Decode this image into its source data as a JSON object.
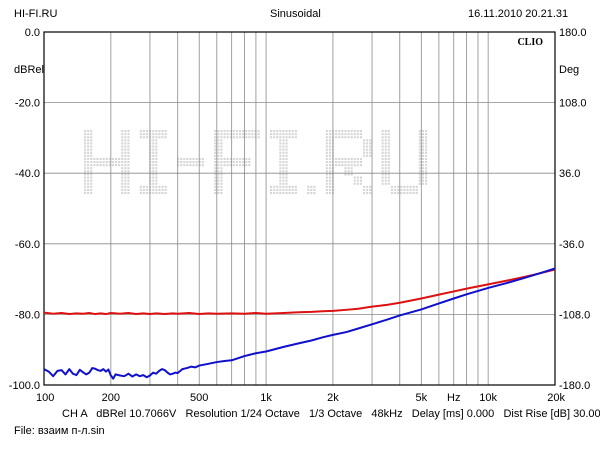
{
  "header": {
    "left": "HI-FI.RU",
    "center": "Sinusoidal",
    "right": "16.11.2010 20.21.31"
  },
  "footer": {
    "line1": "CH A   dBRel 10.7066V   Resolution 1/24 Octave   1/3 Octave   48kHz   Delay [ms] 0.000   Dist Rise [dB] 30.00",
    "line2": "File: взаим п-л.sin"
  },
  "chart_data": {
    "type": "line",
    "brand": "CLIO",
    "watermark": "HI-FI.RU",
    "xscale": "log",
    "xlim": [
      100,
      20000
    ],
    "xticks": [
      {
        "value": 100,
        "label": "100"
      },
      {
        "value": 200,
        "label": "200"
      },
      {
        "value": 500,
        "label": "500"
      },
      {
        "value": 1000,
        "label": "1k"
      },
      {
        "value": 2000,
        "label": "2k"
      },
      {
        "value": 5000,
        "label": "5k"
      },
      {
        "value": 7000,
        "label": "Hz"
      },
      {
        "value": 10000,
        "label": "10k"
      },
      {
        "value": 20000,
        "label": "20k"
      }
    ],
    "ylabel_left": "dBRel",
    "ylim_left": [
      -100,
      0
    ],
    "yticks_left": [
      "0.0",
      "-20.0",
      "-40.0",
      "-60.0",
      "-80.0",
      "-100.0"
    ],
    "ylabel_right": "Deg",
    "ylim_right": [
      -180,
      180
    ],
    "yticks_right": [
      "180.0",
      "108.0",
      "36.0",
      "-36.0",
      "-108.0",
      "-180.0"
    ],
    "grid": true,
    "series": [
      {
        "color": "#dd1111",
        "points": [
          [
            100,
            -79.5
          ],
          [
            110,
            -79.8
          ],
          [
            120,
            -79.6
          ],
          [
            130,
            -79.9
          ],
          [
            140,
            -79.7
          ],
          [
            150,
            -79.8
          ],
          [
            160,
            -79.6
          ],
          [
            170,
            -79.9
          ],
          [
            180,
            -79.7
          ],
          [
            190,
            -79.9
          ],
          [
            200,
            -79.6
          ],
          [
            220,
            -79.8
          ],
          [
            240,
            -79.6
          ],
          [
            260,
            -79.9
          ],
          [
            280,
            -79.7
          ],
          [
            300,
            -79.9
          ],
          [
            320,
            -79.7
          ],
          [
            350,
            -79.9
          ],
          [
            380,
            -79.7
          ],
          [
            400,
            -79.8
          ],
          [
            450,
            -79.6
          ],
          [
            500,
            -79.9
          ],
          [
            550,
            -79.7
          ],
          [
            600,
            -79.8
          ],
          [
            700,
            -79.7
          ],
          [
            800,
            -79.8
          ],
          [
            900,
            -79.6
          ],
          [
            1000,
            -79.8
          ],
          [
            1200,
            -79.6
          ],
          [
            1400,
            -79.4
          ],
          [
            1600,
            -79.3
          ],
          [
            1800,
            -79.1
          ],
          [
            2000,
            -79.0
          ],
          [
            2300,
            -78.7
          ],
          [
            2600,
            -78.4
          ],
          [
            3000,
            -77.8
          ],
          [
            3500,
            -77.3
          ],
          [
            4000,
            -76.7
          ],
          [
            5000,
            -75.5
          ],
          [
            6000,
            -74.4
          ],
          [
            7000,
            -73.5
          ],
          [
            8000,
            -72.7
          ],
          [
            10000,
            -71.5
          ],
          [
            12000,
            -70.5
          ],
          [
            14000,
            -69.6
          ],
          [
            16000,
            -68.8
          ],
          [
            18000,
            -68.0
          ],
          [
            20000,
            -67.3
          ]
        ]
      },
      {
        "color": "#1010cc",
        "points": [
          [
            100,
            -95.5
          ],
          [
            105,
            -96.2
          ],
          [
            110,
            -97.5
          ],
          [
            115,
            -96.0
          ],
          [
            120,
            -95.8
          ],
          [
            125,
            -97.0
          ],
          [
            130,
            -95.5
          ],
          [
            135,
            -96.8
          ],
          [
            140,
            -97.2
          ],
          [
            145,
            -95.7
          ],
          [
            150,
            -96.4
          ],
          [
            155,
            -97.0
          ],
          [
            160,
            -96.5
          ],
          [
            165,
            -95.2
          ],
          [
            170,
            -95.4
          ],
          [
            175,
            -95.8
          ],
          [
            180,
            -96.0
          ],
          [
            185,
            -95.5
          ],
          [
            190,
            -96.2
          ],
          [
            195,
            -95.6
          ],
          [
            200,
            -97.3
          ],
          [
            205,
            -98.2
          ],
          [
            210,
            -97.0
          ],
          [
            220,
            -97.3
          ],
          [
            230,
            -97.5
          ],
          [
            240,
            -96.8
          ],
          [
            250,
            -97.6
          ],
          [
            260,
            -97.0
          ],
          [
            270,
            -97.5
          ],
          [
            280,
            -97.2
          ],
          [
            290,
            -97.8
          ],
          [
            300,
            -97.3
          ],
          [
            310,
            -96.5
          ],
          [
            320,
            -96.8
          ],
          [
            330,
            -96.0
          ],
          [
            340,
            -95.5
          ],
          [
            350,
            -95.8
          ],
          [
            360,
            -96.5
          ],
          [
            370,
            -97.0
          ],
          [
            380,
            -96.8
          ],
          [
            390,
            -96.5
          ],
          [
            400,
            -96.6
          ],
          [
            420,
            -95.5
          ],
          [
            440,
            -95.2
          ],
          [
            460,
            -94.8
          ],
          [
            480,
            -95.0
          ],
          [
            500,
            -94.5
          ],
          [
            550,
            -94.0
          ],
          [
            600,
            -93.5
          ],
          [
            650,
            -93.2
          ],
          [
            700,
            -93.0
          ],
          [
            800,
            -91.8
          ],
          [
            900,
            -91.0
          ],
          [
            1000,
            -90.5
          ],
          [
            1200,
            -89.2
          ],
          [
            1400,
            -88.2
          ],
          [
            1600,
            -87.4
          ],
          [
            1800,
            -86.5
          ],
          [
            2000,
            -85.8
          ],
          [
            2300,
            -85.0
          ],
          [
            2600,
            -84.0
          ],
          [
            3000,
            -82.8
          ],
          [
            3500,
            -81.5
          ],
          [
            4000,
            -80.3
          ],
          [
            5000,
            -78.6
          ],
          [
            6000,
            -76.9
          ],
          [
            7000,
            -75.5
          ],
          [
            8000,
            -74.3
          ],
          [
            10000,
            -72.5
          ],
          [
            12000,
            -71.2
          ],
          [
            14000,
            -70.0
          ],
          [
            16000,
            -68.9
          ],
          [
            18000,
            -67.9
          ],
          [
            20000,
            -67.0
          ]
        ]
      }
    ]
  }
}
